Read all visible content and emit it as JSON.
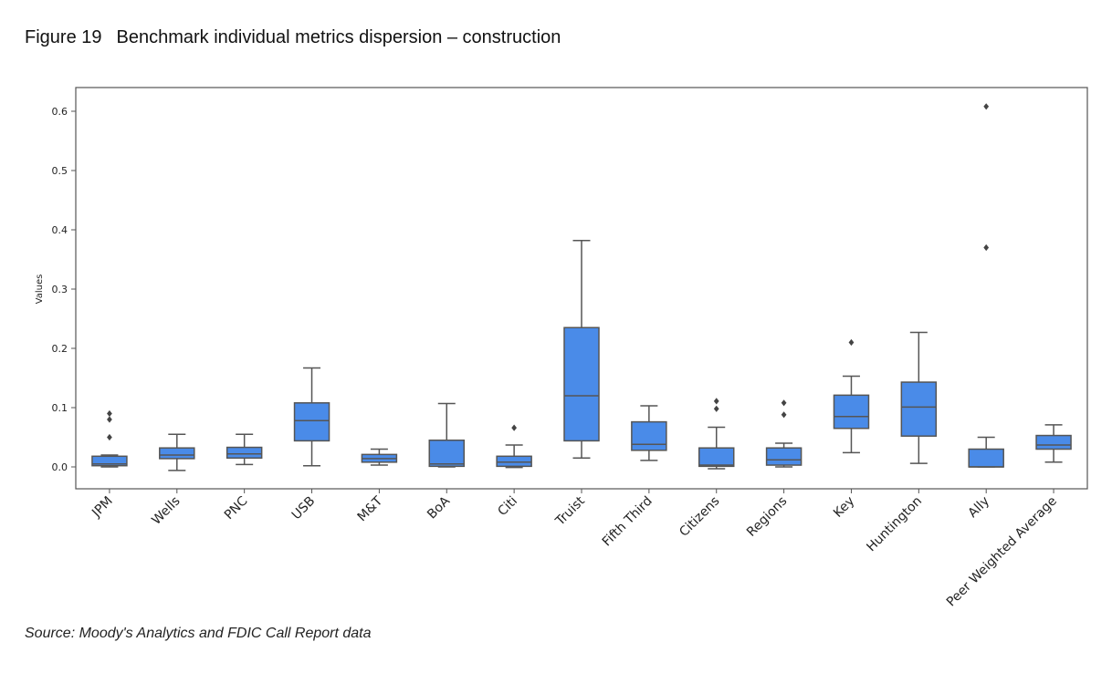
{
  "header": {
    "figure_label": "Figure 19",
    "title": "Benchmark individual metrics dispersion – construction"
  },
  "source": "Source: Moody's Analytics and FDIC Call Report data",
  "colors": {
    "box_fill": "#4A8BE8",
    "line": "#555555",
    "frame": "#555555"
  },
  "chart_data": {
    "type": "box",
    "title": "",
    "xlabel": "",
    "ylabel": "Values",
    "ylim": [
      -0.037,
      0.64
    ],
    "yticks": [
      0.0,
      0.1,
      0.2,
      0.3,
      0.4,
      0.5,
      0.6
    ],
    "ytick_labels": [
      "0.0",
      "0.1",
      "0.2",
      "0.3",
      "0.4",
      "0.5",
      "0.6"
    ],
    "grid": false,
    "categories": [
      "JPM",
      "Wells",
      "PNC",
      "USB",
      "M&T",
      "BoA",
      "Citi",
      "Truist",
      "Fifth Third",
      "Citizens",
      "Regions",
      "Key",
      "Huntington",
      "Ally",
      "Peer Weighted Average"
    ],
    "boxes": [
      {
        "whisker_low": 0.0,
        "q1": 0.002,
        "median": 0.005,
        "q3": 0.018,
        "whisker_high": 0.02,
        "outliers": [
          0.05,
          0.08,
          0.09
        ]
      },
      {
        "whisker_low": -0.006,
        "q1": 0.014,
        "median": 0.02,
        "q3": 0.032,
        "whisker_high": 0.055,
        "outliers": []
      },
      {
        "whisker_low": 0.004,
        "q1": 0.015,
        "median": 0.022,
        "q3": 0.033,
        "whisker_high": 0.055,
        "outliers": []
      },
      {
        "whisker_low": 0.002,
        "q1": 0.044,
        "median": 0.078,
        "q3": 0.108,
        "whisker_high": 0.167,
        "outliers": []
      },
      {
        "whisker_low": 0.003,
        "q1": 0.008,
        "median": 0.014,
        "q3": 0.021,
        "whisker_high": 0.03,
        "outliers": []
      },
      {
        "whisker_low": 0.0,
        "q1": 0.001,
        "median": 0.005,
        "q3": 0.045,
        "whisker_high": 0.107,
        "outliers": []
      },
      {
        "whisker_low": -0.001,
        "q1": 0.001,
        "median": 0.008,
        "q3": 0.018,
        "whisker_high": 0.037,
        "outliers": [
          0.066
        ]
      },
      {
        "whisker_low": 0.015,
        "q1": 0.044,
        "median": 0.12,
        "q3": 0.235,
        "whisker_high": 0.382,
        "outliers": []
      },
      {
        "whisker_low": 0.011,
        "q1": 0.028,
        "median": 0.038,
        "q3": 0.076,
        "whisker_high": 0.103,
        "outliers": []
      },
      {
        "whisker_low": -0.003,
        "q1": 0.001,
        "median": 0.003,
        "q3": 0.032,
        "whisker_high": 0.067,
        "outliers": [
          0.098,
          0.111
        ]
      },
      {
        "whisker_low": 0.0,
        "q1": 0.003,
        "median": 0.012,
        "q3": 0.032,
        "whisker_high": 0.04,
        "outliers": [
          0.088,
          0.108
        ]
      },
      {
        "whisker_low": 0.024,
        "q1": 0.065,
        "median": 0.085,
        "q3": 0.121,
        "whisker_high": 0.153,
        "outliers": [
          0.21
        ]
      },
      {
        "whisker_low": 0.006,
        "q1": 0.052,
        "median": 0.101,
        "q3": 0.143,
        "whisker_high": 0.227,
        "outliers": []
      },
      {
        "whisker_low": 0.0,
        "q1": 0.0,
        "median": 0.0,
        "q3": 0.03,
        "whisker_high": 0.05,
        "outliers": [
          0.37,
          0.608
        ]
      },
      {
        "whisker_low": 0.008,
        "q1": 0.03,
        "median": 0.037,
        "q3": 0.053,
        "whisker_high": 0.071,
        "outliers": []
      }
    ]
  }
}
